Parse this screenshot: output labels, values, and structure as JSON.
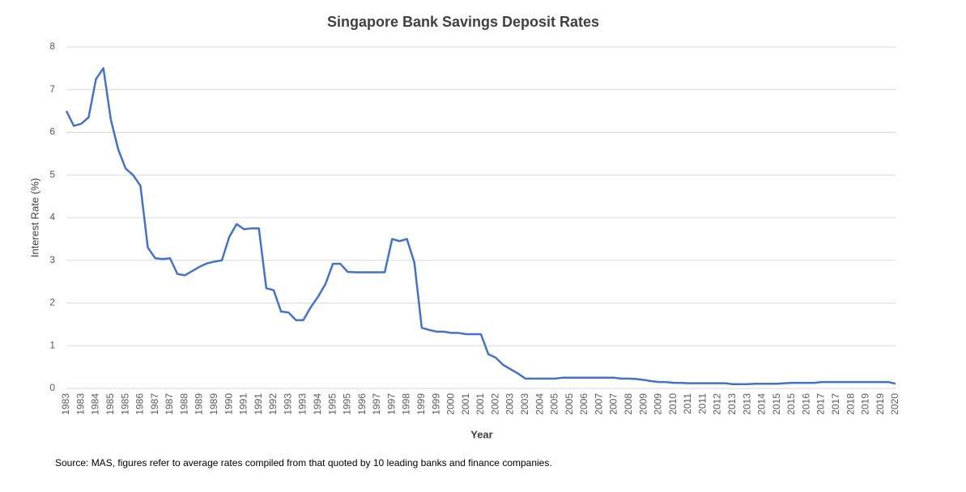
{
  "chart_data": {
    "type": "line",
    "title": "Singapore Bank Savings Deposit Rates",
    "x_label": "Year",
    "y_label": "Interest Rate (%)",
    "source": "Source: MAS, figures refer to average rates compiled from that quoted by 10 leading banks and finance companies.",
    "ylim": [
      0,
      8
    ],
    "yticks": [
      0,
      1,
      2,
      3,
      4,
      5,
      6,
      7,
      8
    ],
    "grid": true,
    "color": "#4472c4",
    "categories": [
      "1983",
      null,
      "1983",
      null,
      "1984",
      null,
      "1985",
      null,
      "1985",
      null,
      "1986",
      null,
      "1987",
      null,
      "1987",
      null,
      "1988",
      null,
      "1989",
      null,
      "1989",
      null,
      "1990",
      null,
      "1991",
      null,
      "1991",
      null,
      "1992",
      null,
      "1993",
      null,
      "1993",
      null,
      "1994",
      null,
      "1995",
      null,
      "1995",
      null,
      "1996",
      null,
      "1997",
      null,
      "1997",
      null,
      "1998",
      null,
      "1999",
      null,
      "1999",
      null,
      "2000",
      null,
      "2001",
      null,
      "2001",
      null,
      "2002",
      null,
      "2003",
      null,
      "2003",
      null,
      "2004",
      null,
      "2005",
      null,
      "2005",
      null,
      "2006",
      null,
      "2007",
      null,
      "2007",
      null,
      "2008",
      null,
      "2009",
      null,
      "2009",
      null,
      "2010",
      null,
      "2011",
      null,
      "2011",
      null,
      "2012",
      null,
      "2013",
      null,
      "2013",
      null,
      "2014",
      null,
      "2015",
      null,
      "2015",
      null,
      "2016",
      null,
      "2017",
      null,
      "2017",
      null,
      "2018",
      null,
      "2019",
      null,
      "2019",
      null,
      "2020"
    ],
    "values": [
      6.5,
      6.15,
      6.2,
      6.35,
      7.25,
      7.5,
      6.3,
      5.6,
      5.15,
      5.0,
      4.75,
      3.3,
      3.05,
      3.03,
      3.05,
      2.68,
      2.65,
      2.75,
      2.85,
      2.93,
      2.97,
      3.0,
      3.55,
      3.85,
      3.73,
      3.75,
      3.75,
      2.35,
      2.3,
      1.8,
      1.78,
      1.6,
      1.6,
      1.9,
      2.15,
      2.45,
      2.92,
      2.92,
      2.73,
      2.72,
      2.72,
      2.72,
      2.72,
      2.72,
      3.5,
      3.45,
      3.5,
      2.95,
      1.42,
      1.37,
      1.33,
      1.33,
      1.3,
      1.3,
      1.27,
      1.27,
      1.27,
      0.8,
      0.72,
      0.55,
      0.45,
      0.35,
      0.23,
      0.23,
      0.23,
      0.23,
      0.23,
      0.25,
      0.25,
      0.25,
      0.25,
      0.25,
      0.25,
      0.25,
      0.25,
      0.23,
      0.23,
      0.22,
      0.2,
      0.17,
      0.15,
      0.15,
      0.13,
      0.13,
      0.12,
      0.12,
      0.12,
      0.12,
      0.12,
      0.12,
      0.1,
      0.1,
      0.1,
      0.11,
      0.11,
      0.11,
      0.11,
      0.12,
      0.13,
      0.13,
      0.13,
      0.13,
      0.15,
      0.15,
      0.15,
      0.15,
      0.15,
      0.15,
      0.15,
      0.15,
      0.15,
      0.15,
      0.11
    ]
  }
}
